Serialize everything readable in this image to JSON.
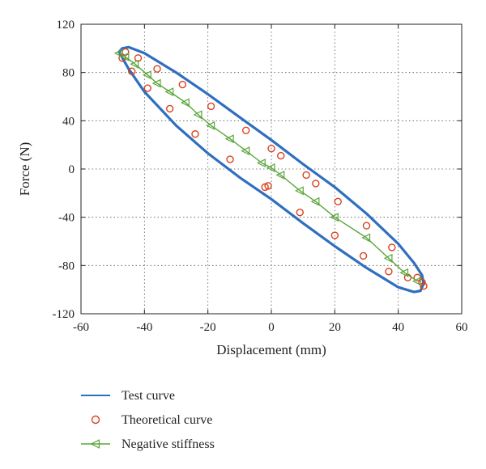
{
  "chart_data": {
    "type": "line",
    "xlabel": "Displacement (mm)",
    "ylabel": "Force (N)",
    "xlim": [
      -60,
      60
    ],
    "ylim": [
      -120,
      120
    ],
    "xticks": [
      -60,
      -40,
      -20,
      0,
      20,
      40,
      60
    ],
    "yticks": [
      120,
      80,
      40,
      0,
      -40,
      -80,
      -120
    ],
    "grid": true,
    "grid_style": "dotted",
    "legend_position": "below",
    "series": [
      {
        "name": "Test curve",
        "kind": "line",
        "color": "#2e6fbf",
        "x": [
          -48,
          -47,
          -45,
          -40,
          -30,
          -20,
          -10,
          0,
          10,
          20,
          30,
          40,
          45,
          47.5,
          48,
          47,
          45,
          40,
          30,
          20,
          10,
          0,
          -10,
          -20,
          -30,
          -40,
          -45,
          -48
        ],
        "y": [
          97,
          100,
          101,
          96,
          80,
          62,
          43,
          24,
          4,
          -15,
          -37,
          -62,
          -78,
          -88,
          -95,
          -101,
          -102,
          -98,
          -82,
          -64,
          -45,
          -25,
          -7,
          13,
          36,
          64,
          83,
          97
        ]
      },
      {
        "name": "Theoretical curve",
        "kind": "scatter",
        "color": "#d9411e",
        "x": [
          -47,
          -46,
          -44,
          -42,
          -39,
          -36,
          -32,
          -28,
          -24,
          -19,
          -13,
          -8,
          -2,
          0,
          3,
          11,
          14,
          21,
          30,
          38,
          46,
          48,
          47.5,
          43,
          37,
          29,
          20,
          9,
          -1
        ],
        "y": [
          92,
          97,
          81,
          92,
          67,
          83,
          50,
          70,
          29,
          52,
          8,
          32,
          -15,
          17,
          11,
          -5,
          -12,
          -27,
          -47,
          -65,
          -90,
          -97,
          -94,
          -90,
          -85,
          -72,
          -55,
          -36,
          -14
        ]
      },
      {
        "name": "Negative stiffness",
        "kind": "line-markers",
        "color": "#5aa63a",
        "x": [
          -48,
          -46,
          -43,
          -39,
          -36,
          -32,
          -27,
          -23,
          -19,
          -13,
          -8,
          -3,
          0,
          3,
          9,
          14,
          20,
          30,
          37,
          42,
          46
        ],
        "y": [
          96,
          93,
          87,
          78,
          71,
          64,
          55,
          45,
          36,
          25,
          15,
          5,
          1,
          -5,
          -18,
          -27,
          -40,
          -57,
          -74,
          -86,
          -93
        ]
      }
    ]
  }
}
